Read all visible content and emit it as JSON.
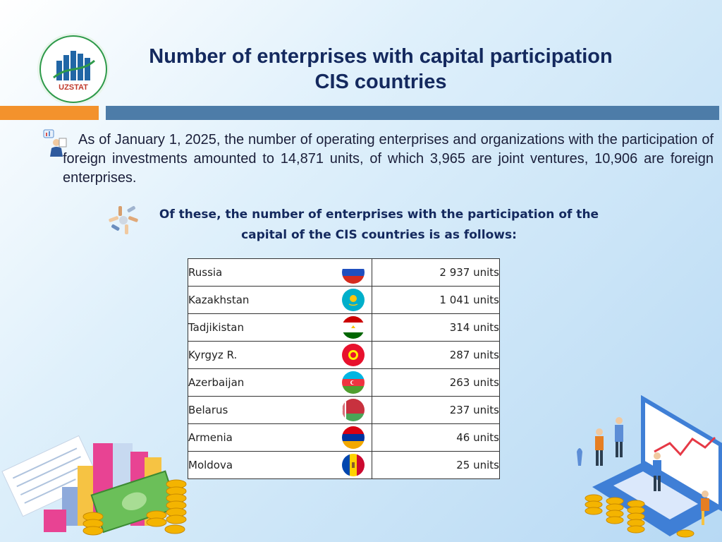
{
  "logo": {
    "text": "UZSTAT"
  },
  "header": {
    "title_line1": "Number of enterprises with capital participation",
    "title_line2": "CIS countries"
  },
  "intro": {
    "text": "As of January 1, 2025, the number of operating enterprises and organizations with the participation of foreign investments amounted to 14,871 units, of which 3,965 are joint ventures, 10,906 are foreign enterprises."
  },
  "subtitle": {
    "line1": "Of these, the number of enterprises with the participation of the",
    "line2": "capital of the CIS countries is as follows:"
  },
  "table": {
    "rows": [
      {
        "country": "Russia",
        "value": "2 937 units",
        "flag": "russia-flag-icon"
      },
      {
        "country": "Kazakhstan",
        "value": "1 041 units",
        "flag": "kazakhstan-flag-icon"
      },
      {
        "country": "Tadjikistan",
        "value": "314 units",
        "flag": "tajikistan-flag-icon"
      },
      {
        "country": "Kyrgyz R.",
        "value": "287 units",
        "flag": "kyrgyzstan-flag-icon"
      },
      {
        "country": "Azerbaijan",
        "value": "263 units",
        "flag": "azerbaijan-flag-icon"
      },
      {
        "country": "Belarus",
        "value": "237 units",
        "flag": "belarus-flag-icon"
      },
      {
        "country": "Armenia",
        "value": "46 units",
        "flag": "armenia-flag-icon"
      },
      {
        "country": "Moldova",
        "value": "25 units",
        "flag": "moldova-flag-icon"
      }
    ]
  },
  "colors": {
    "title": "#14295e",
    "accent_orange": "#f3922c",
    "accent_blue": "#4d7ca8"
  }
}
